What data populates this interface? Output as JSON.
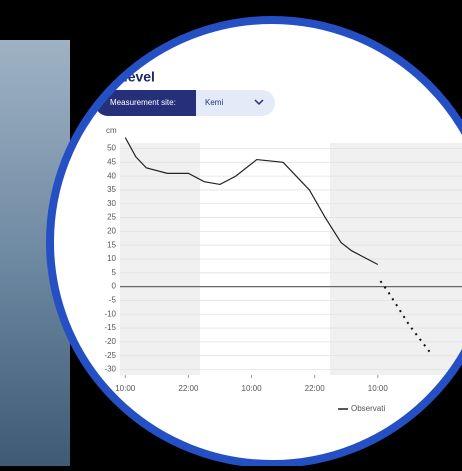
{
  "header": {
    "title": "Sea level",
    "site_label": "Measurement site:",
    "site_value": "Kemi"
  },
  "chart_data": {
    "type": "line",
    "y_unit": "cm",
    "x": [
      0,
      2,
      4,
      8,
      12,
      15,
      18,
      21,
      25,
      30,
      33,
      35,
      38,
      41,
      43,
      45,
      47,
      48
    ],
    "series": [
      {
        "name": "Observati",
        "color": "#222222",
        "values": [
          54,
          47,
          43,
          41,
          41,
          38,
          37,
          40,
          46,
          45,
          39,
          35,
          25,
          16,
          13,
          11,
          9,
          8
        ]
      },
      {
        "color": "#111111",
        "x": [
          48.5,
          50,
          52,
          54,
          56,
          58
        ],
        "values": [
          2,
          -2,
          -8,
          -14,
          -19,
          -24
        ],
        "dotted": true
      }
    ],
    "xlim": [
      -1,
      64
    ],
    "xticks": [
      {
        "value": 0,
        "label": "10:00"
      },
      {
        "value": 12,
        "label": "22:00"
      },
      {
        "value": 24,
        "label": "10:00"
      },
      {
        "value": 36,
        "label": "22:00"
      },
      {
        "value": 48,
        "label": "10:00"
      }
    ],
    "ylim": [
      -32,
      52
    ],
    "yticks": [
      50,
      45,
      40,
      35,
      30,
      25,
      20,
      15,
      10,
      5,
      0,
      -5,
      -10,
      -15,
      -20,
      -25,
      -30
    ],
    "grid": true
  }
}
